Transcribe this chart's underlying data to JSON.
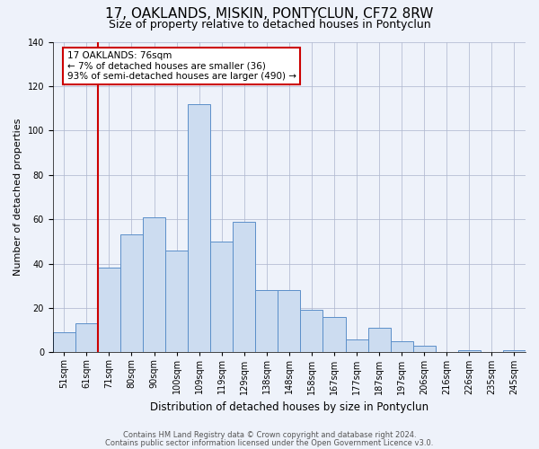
{
  "title": "17, OAKLANDS, MISKIN, PONTYCLUN, CF72 8RW",
  "subtitle": "Size of property relative to detached houses in Pontyclun",
  "xlabel": "Distribution of detached houses by size in Pontyclun",
  "ylabel": "Number of detached properties",
  "bin_labels": [
    "51sqm",
    "61sqm",
    "71sqm",
    "80sqm",
    "90sqm",
    "100sqm",
    "109sqm",
    "119sqm",
    "129sqm",
    "138sqm",
    "148sqm",
    "158sqm",
    "167sqm",
    "177sqm",
    "187sqm",
    "197sqm",
    "206sqm",
    "216sqm",
    "226sqm",
    "235sqm",
    "245sqm"
  ],
  "bar_heights": [
    9,
    13,
    38,
    53,
    61,
    46,
    112,
    50,
    59,
    28,
    28,
    19,
    16,
    6,
    11,
    5,
    3,
    0,
    1,
    0,
    1
  ],
  "bar_color": "#ccdcf0",
  "bar_edge_color": "#5b8fc9",
  "ylim": [
    0,
    140
  ],
  "yticks": [
    0,
    20,
    40,
    60,
    80,
    100,
    120,
    140
  ],
  "vline_idx": 2,
  "vline_color": "#cc0000",
  "annotation_text": "17 OAKLANDS: 76sqm\n← 7% of detached houses are smaller (36)\n93% of semi-detached houses are larger (490) →",
  "annotation_box_color": "#ffffff",
  "annotation_box_edge_color": "#cc0000",
  "footer_line1": "Contains HM Land Registry data © Crown copyright and database right 2024.",
  "footer_line2": "Contains public sector information licensed under the Open Government Licence v3.0.",
  "title_fontsize": 11,
  "subtitle_fontsize": 9,
  "xlabel_fontsize": 8.5,
  "ylabel_fontsize": 8,
  "tick_fontsize": 7,
  "annotation_fontsize": 7.5,
  "footer_fontsize": 6,
  "background_color": "#eef2fa",
  "grid_color": "#b0b8d0"
}
